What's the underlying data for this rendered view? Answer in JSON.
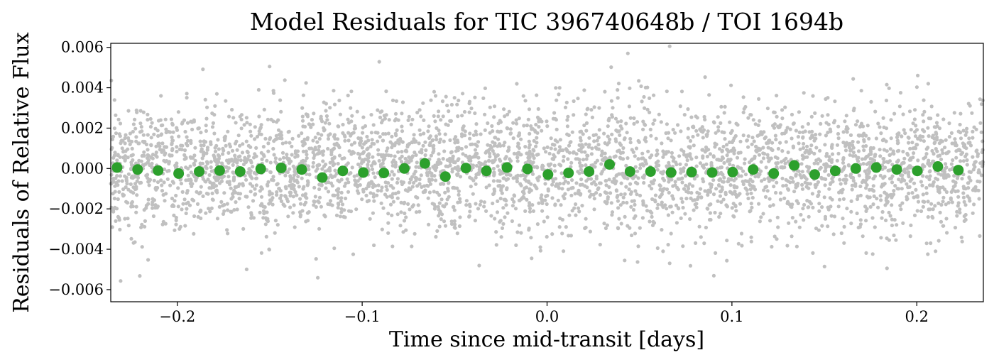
{
  "chart_data": {
    "type": "scatter",
    "title": "Model Residuals for TIC 396740648b / TOI 1694b",
    "xlabel": "Time since mid-transit [days]",
    "ylabel": "Residuals of Relative Flux",
    "xlim": [
      -0.236,
      0.236
    ],
    "ylim": [
      -0.0066,
      0.0062
    ],
    "x_ticks": [
      -0.2,
      -0.1,
      0.0,
      0.1,
      0.2
    ],
    "x_tick_labels": [
      "−0.2",
      "−0.1",
      "0.0",
      "0.1",
      "0.2"
    ],
    "y_ticks": [
      -0.006,
      -0.004,
      -0.002,
      0.0,
      0.002,
      0.004,
      0.006
    ],
    "y_tick_labels": [
      "−0.006",
      "−0.004",
      "−0.002",
      "0.000",
      "0.002",
      "0.004",
      "0.006"
    ],
    "grid": false,
    "raw_points": {
      "color": "#c0c0c0",
      "count_approx": 4000,
      "scatter_sigma": 0.0016,
      "note_x_range": [
        -0.236,
        0.236
      ]
    },
    "series": [
      {
        "color": "#2ca02c",
        "x": [
          -0.2326,
          -0.2215,
          -0.2104,
          -0.1993,
          -0.1882,
          -0.1771,
          -0.166,
          -0.1549,
          -0.1438,
          -0.1327,
          -0.1216,
          -0.1105,
          -0.0994,
          -0.0883,
          -0.0772,
          -0.0661,
          -0.055,
          -0.0439,
          -0.0328,
          -0.0217,
          -0.0106,
          0.0005,
          0.0116,
          0.0227,
          0.0338,
          0.0449,
          0.056,
          0.0671,
          0.0782,
          0.0893,
          0.1004,
          0.1115,
          0.1226,
          0.1337,
          0.1448,
          0.1559,
          0.167,
          0.1781,
          0.1892,
          0.2003,
          0.2114,
          0.2225
        ],
        "y": [
          5e-05,
          -5e-05,
          -0.0001,
          -0.00025,
          -0.00015,
          -0.0001,
          -0.00015,
          -2e-05,
          3e-05,
          -5e-05,
          -0.00045,
          -0.00012,
          -0.0002,
          -0.00022,
          0.0,
          0.00025,
          -0.0004,
          2e-05,
          -0.00012,
          5e-05,
          -2e-05,
          -0.0003,
          -0.00022,
          -0.00015,
          0.0002,
          -0.00015,
          -0.00015,
          -0.0002,
          -0.00018,
          -0.0002,
          -0.00018,
          -5e-05,
          -0.00025,
          0.00015,
          -0.0003,
          -0.00012,
          0.0,
          5e-05,
          -5e-05,
          -0.00012,
          0.0001,
          -8e-05
        ]
      }
    ]
  }
}
